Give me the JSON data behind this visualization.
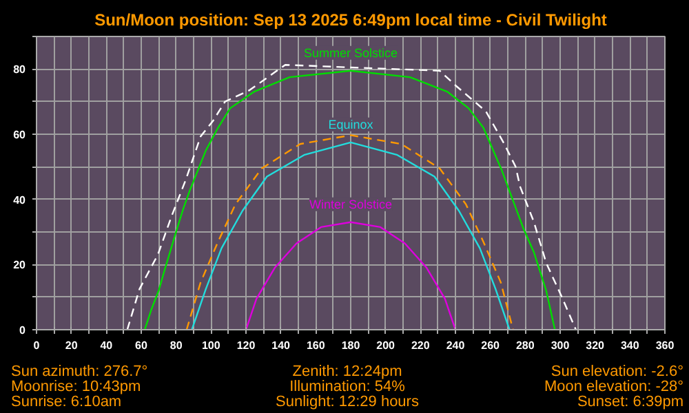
{
  "chart_data": {
    "type": "line",
    "title": "Sun/Moon position: Sep 13 2025 6:49pm local time - Civil Twilight",
    "xlim": [
      0,
      360
    ],
    "ylim": [
      0,
      90
    ],
    "xticks": [
      0,
      {
        "value": 10,
        "label": null
      },
      20,
      {
        "value": 30,
        "label": null
      },
      40,
      {
        "value": 50,
        "label": null
      },
      60,
      {
        "value": 70,
        "label": null
      },
      80,
      {
        "value": 90,
        "label": null
      },
      100,
      {
        "value": 110,
        "label": null
      },
      120,
      {
        "value": 130,
        "label": null
      },
      140,
      {
        "value": 150,
        "label": null
      },
      160,
      {
        "value": 170,
        "label": null
      },
      180,
      {
        "value": 190,
        "label": null
      },
      200,
      {
        "value": 210,
        "label": null
      },
      220,
      {
        "value": 230,
        "label": null
      },
      240,
      {
        "value": 250,
        "label": null
      },
      260,
      {
        "value": 270,
        "label": null
      },
      280,
      {
        "value": 290,
        "label": null
      },
      300,
      {
        "value": 310,
        "label": null
      },
      320,
      {
        "value": 330,
        "label": null
      },
      340,
      {
        "value": 350,
        "label": null
      },
      360
    ],
    "yticks": [
      0,
      {
        "value": 10,
        "label": null
      },
      20,
      {
        "value": 30,
        "label": null
      },
      40,
      {
        "value": 50,
        "label": null
      },
      60,
      {
        "value": 70,
        "label": null
      },
      80,
      {
        "value": 90,
        "label": null
      }
    ],
    "grid": true,
    "series": [
      {
        "name": "Summer Solstice",
        "color": "#00dd00",
        "line_style": "solid",
        "x": [
          62,
          66,
          70,
          73.5,
          80.5,
          84,
          88,
          97,
          104,
          111,
          124.5,
          145,
          180,
          214,
          235.5,
          247.5,
          256,
          261.7,
          266.5,
          271,
          279,
          285,
          292,
          297
        ],
        "values": [
          0,
          6.5,
          12,
          18.5,
          31,
          37,
          43,
          55,
          62,
          68,
          73,
          77.5,
          79.5,
          77.5,
          73,
          68,
          62,
          55,
          49,
          42.5,
          31,
          23.7,
          12,
          0
        ]
      },
      {
        "name": "Equinox",
        "color": "#22dddd",
        "line_style": "solid",
        "x": [
          89,
          97,
          106,
          118,
          132,
          153.6,
          180,
          206.4,
          228,
          242,
          254,
          263,
          271
        ],
        "values": [
          0,
          12.5,
          25,
          36.5,
          47,
          53.7,
          57.5,
          53.7,
          47,
          36.5,
          25,
          12.5,
          0
        ]
      },
      {
        "name": "Winter Solstice",
        "color": "#dd00dd",
        "line_style": "solid",
        "x": [
          120,
          126,
          136.5,
          149,
          163,
          180,
          197,
          211,
          223.5,
          234,
          240
        ],
        "values": [
          0,
          9.5,
          19,
          26.5,
          31.5,
          33,
          31.5,
          26.5,
          19,
          9.5,
          0
        ]
      },
      {
        "color": "#ff9900",
        "line_style": "dashed",
        "x": [
          86,
          94,
          104,
          114,
          129,
          151,
          180,
          209,
          231,
          246,
          256,
          266,
          273
        ],
        "values": [
          0,
          14.5,
          27,
          38.5,
          49.5,
          57,
          59.7,
          57,
          49.5,
          38.5,
          27,
          14.5,
          0
        ]
      },
      {
        "color": "#ffffff",
        "line_style": "dashed",
        "x": [
          52,
          59,
          69.5,
          77.5,
          85.5,
          94,
          101,
          108,
          122,
          142.5,
          180,
          231,
          240,
          257.5,
          268,
          274.5,
          277,
          285,
          292,
          301,
          309
        ],
        "values": [
          0,
          12.5,
          23,
          35,
          46,
          59.3,
          64,
          70,
          73.5,
          81.3,
          80.5,
          79.5,
          75,
          67,
          57,
          50,
          44,
          33,
          20.5,
          10,
          0
        ]
      }
    ],
    "annotations": [
      "Sun azimuth: 276.7°",
      "Zenith: 12:24pm",
      "Sun elevation: -2.6°",
      "Moonrise: 10:43pm",
      "Illumination: 54%",
      "Moon elevation: -28°",
      "Sunrise: 6:10am",
      "Sunlight: 12:29 hours",
      "Sunset: 6:39pm"
    ]
  }
}
